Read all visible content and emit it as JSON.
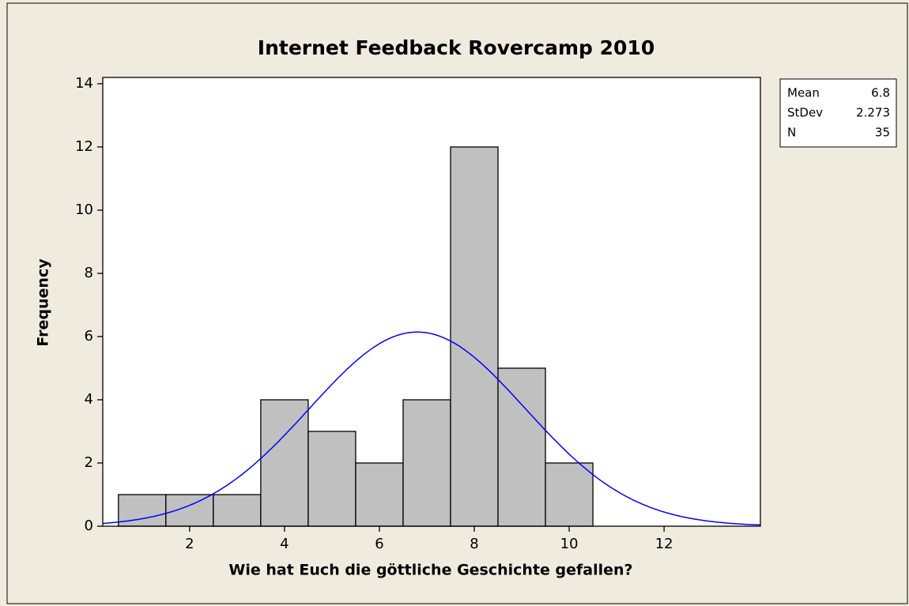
{
  "chart_data": {
    "type": "histogram",
    "title": "Internet Feedback Rovercamp 2010",
    "xlabel": "Wie hat Euch die göttliche Geschichte gefallen?",
    "ylabel": "Frequency",
    "bins": [
      0.5,
      1.5,
      2.5,
      3.5,
      4.5,
      5.5,
      6.5,
      7.5,
      8.5,
      9.5,
      10.5
    ],
    "values": [
      1,
      1,
      1,
      4,
      3,
      2,
      4,
      12,
      5,
      2
    ],
    "color": "#c0c0c0",
    "curve_color": "#0000ff",
    "xlim": [
      0.17,
      14.03
    ],
    "xticks": [
      2,
      4,
      6,
      8,
      10,
      12
    ],
    "ylim": [
      0,
      14.2
    ],
    "yticks": [
      0,
      2,
      4,
      6,
      8,
      10,
      12,
      14
    ],
    "stats": [
      {
        "label": "Mean",
        "value": 6.8
      },
      {
        "label": "StDev",
        "value": 2.273
      },
      {
        "label": "N",
        "value": 35
      }
    ]
  }
}
